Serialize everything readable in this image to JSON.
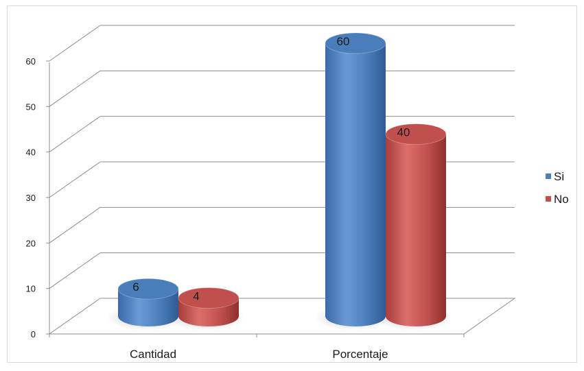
{
  "chart_data": {
    "type": "bar",
    "categories": [
      "Cantidad",
      "Porcentaje"
    ],
    "series": [
      {
        "name": "Si",
        "values": [
          6,
          60
        ],
        "color": "#4a7ebb"
      },
      {
        "name": "No",
        "values": [
          4,
          40
        ],
        "color": "#c0504d"
      }
    ],
    "data_labels": [
      "6",
      "4",
      "60",
      "40"
    ],
    "ylim": [
      0,
      60
    ],
    "yticks": [
      "0",
      "10",
      "20",
      "30",
      "40",
      "50",
      "60"
    ],
    "grid": true,
    "legend_position": "right",
    "three_d": true,
    "bar_shape": "cylinder"
  }
}
